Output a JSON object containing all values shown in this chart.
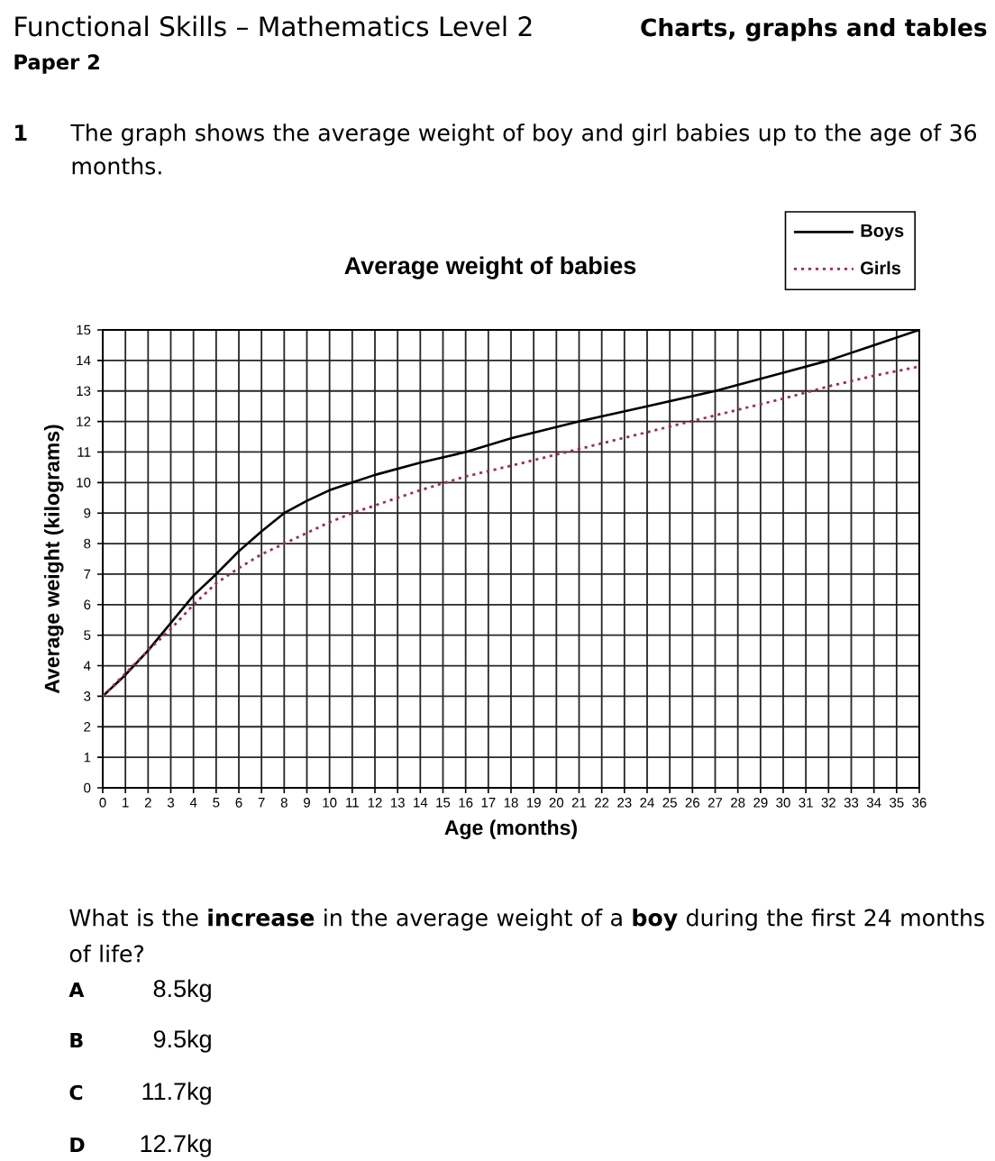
{
  "chart_data": {
    "type": "line",
    "title": "Average weight of babies",
    "xlabel": "Age (months)",
    "ylabel": "Average weight (kilograms)",
    "annotations": [
      "Functional Skills – Mathematics Level 2",
      "Charts, graphs and tables",
      "Paper 2",
      "1",
      "The graph shows the average weight of boy and girl babies up to the age of 36 months.",
      "What is the **increase** in the average weight of a **boy** during the first 24 months of life?",
      "A",
      "8.5kg",
      "B",
      "9.5kg",
      "C",
      "11.7kg",
      "D",
      "12.7kg"
    ],
    "x": [
      0,
      1,
      2,
      3,
      4,
      5,
      6,
      7,
      8,
      9,
      10,
      11,
      12,
      14,
      16,
      18,
      21,
      24,
      27,
      30,
      32,
      34,
      36
    ],
    "series": [
      {
        "name": "Boys",
        "color": "#000000",
        "line_style": "solid",
        "values": [
          3,
          3.7,
          4.5,
          5.4,
          6.3,
          7.0,
          7.75,
          8.4,
          9.0,
          9.4,
          9.75,
          10.0,
          10.25,
          10.65,
          11.0,
          11.45,
          12.0,
          12.5,
          13.0,
          13.6,
          14.0,
          14.5,
          15.0
        ]
      },
      {
        "name": "Girls",
        "color": "#993344",
        "line_style": "dotted",
        "values": [
          3,
          3.75,
          4.5,
          5.2,
          6.0,
          6.7,
          7.2,
          7.65,
          8.0,
          8.35,
          8.7,
          9.0,
          9.25,
          9.75,
          10.2,
          10.55,
          11.1,
          11.65,
          12.2,
          12.75,
          13.15,
          13.5,
          13.8
        ]
      }
    ],
    "xlim": [
      0,
      36
    ],
    "ylim": [
      0,
      15
    ],
    "xticks": [
      0,
      1,
      2,
      3,
      4,
      5,
      6,
      7,
      8,
      9,
      10,
      11,
      12,
      13,
      14,
      15,
      16,
      17,
      18,
      19,
      20,
      21,
      22,
      23,
      24,
      25,
      26,
      27,
      28,
      29,
      30,
      31,
      32,
      33,
      34,
      35,
      36
    ],
    "yticks": [
      0,
      1,
      2,
      3,
      4,
      5,
      6,
      7,
      8,
      9,
      10,
      11,
      12,
      13,
      14,
      15
    ],
    "grid": true,
    "legend": "top right"
  }
}
